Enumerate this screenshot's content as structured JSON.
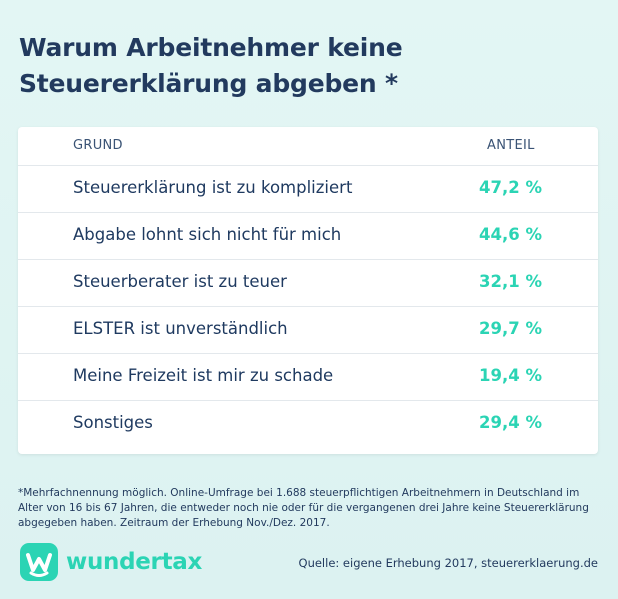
{
  "header": {
    "title_line1": "Warum Arbeitnehmer keine",
    "title_line2": "Steuererklärung abgeben *"
  },
  "chart_data": {
    "type": "table",
    "title": "Warum Arbeitnehmer keine Steuererklärung abgeben *",
    "columns": [
      "GRUND",
      "ANTEIL"
    ],
    "rows": [
      {
        "reason": "Steuererklärung ist zu kompliziert",
        "value_label": "47,2 %",
        "value": 47.2
      },
      {
        "reason": "Abgabe lohnt sich nicht für mich",
        "value_label": "44,6 %",
        "value": 44.6
      },
      {
        "reason": "Steuerberater ist zu teuer",
        "value_label": "32,1 %",
        "value": 32.1
      },
      {
        "reason": "ELSTER ist unverständlich",
        "value_label": "29,7 %",
        "value": 29.7
      },
      {
        "reason": "Meine Freizeit ist mir zu schade",
        "value_label": "19,4 %",
        "value": 19.4
      },
      {
        "reason": "Sonstiges",
        "value_label": "29,4 %",
        "value": 29.4
      }
    ],
    "value_color": "#2bd4b4"
  },
  "footer": {
    "footnote": "*Mehrfachnennung möglich. Online-Umfrage bei 1.688 steuerpflichtigen Arbeitnehmern in Deutschland im Alter von 16 bis 67 Jahren, die entweder noch nie oder für die vergangenen drei Jahre keine Steuererklärung abgegeben haben. Zeitraum der Erhebung Nov./Dez. 2017.",
    "brand": "wundertax",
    "brand_icon": "wundertax-logo-icon",
    "source": "Quelle: eigene Erhebung 2017, steuererklaerung.de"
  },
  "colors": {
    "background": "#dff3f2",
    "accent": "#2bd4b4",
    "text": "#223a5e"
  }
}
